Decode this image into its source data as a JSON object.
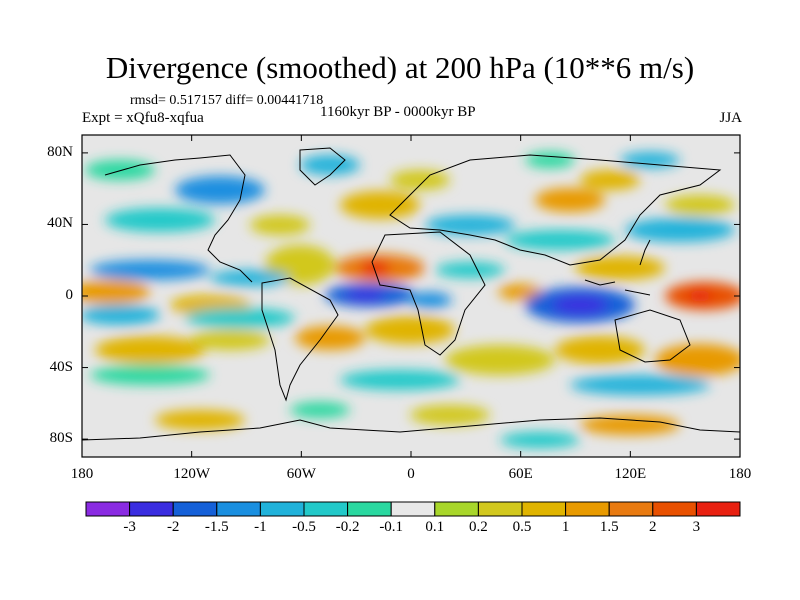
{
  "title": "Divergence (smoothed) at 200 hPa (10**6 m/s)",
  "stats": "rmsd= 0.517157 diff= 0.00441718",
  "experiment": "Expt = xQfu8-xqfua",
  "period": "1160kyr BP - 0000kyr BP",
  "season": "JJA",
  "map": {
    "lon_range": [
      -180,
      180
    ],
    "lat_range": [
      -90,
      90
    ],
    "y_ticks": [
      {
        "label": "80N",
        "lat": 80
      },
      {
        "label": "40N",
        "lat": 40
      },
      {
        "label": "0",
        "lat": 0
      },
      {
        "label": "40S",
        "lat": -40
      },
      {
        "label": "80S",
        "lat": -80
      }
    ],
    "x_ticks": [
      {
        "label": "180",
        "lon": -180
      },
      {
        "label": "120W",
        "lon": -120
      },
      {
        "label": "60W",
        "lon": -60
      },
      {
        "label": "0",
        "lon": 0
      },
      {
        "label": "60E",
        "lon": 60
      },
      {
        "label": "120E",
        "lon": 120
      },
      {
        "label": "180",
        "lon": 180
      }
    ]
  },
  "colorbar": {
    "colors": [
      "#8a2be2",
      "#3a2de0",
      "#1560d8",
      "#1a8fe0",
      "#20b2da",
      "#22c9c9",
      "#2ad8a0",
      "#e8e8e8",
      "#a8d62a",
      "#d2c81e",
      "#e0b400",
      "#e89a00",
      "#e87a10",
      "#e85000",
      "#e82010"
    ],
    "labels": [
      "-3",
      "-2",
      "-1.5",
      "-1",
      "-0.5",
      "-0.2",
      "-0.1",
      "0.1",
      "0.2",
      "0.5",
      "1",
      "1.5",
      "2",
      "3"
    ]
  }
}
